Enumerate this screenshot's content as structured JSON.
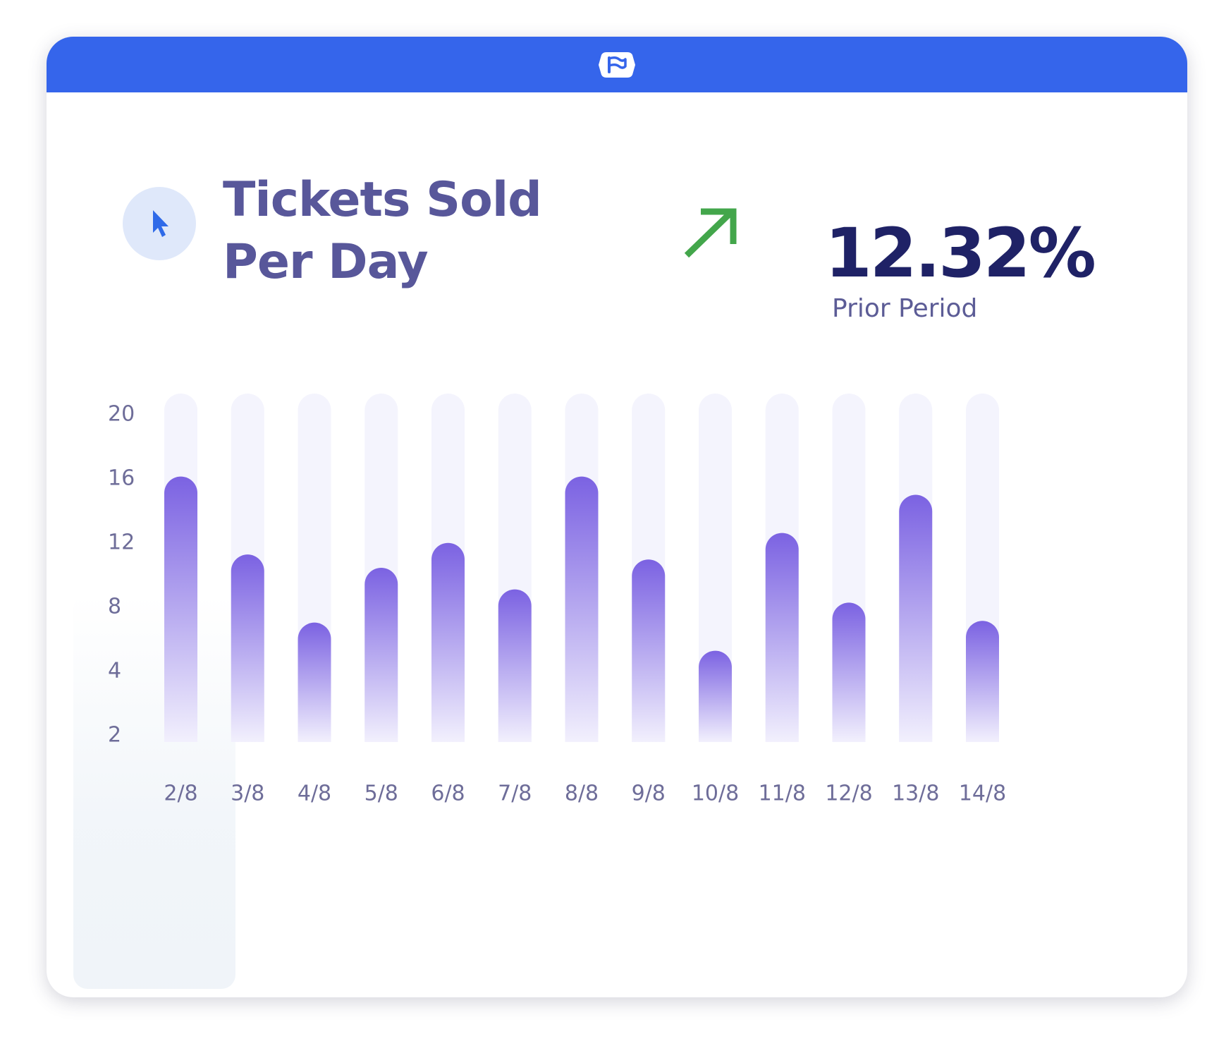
{
  "header": {
    "logo_icon": "flag-logo-icon",
    "color": "#3565eb"
  },
  "title": {
    "line1": "Tickets Sold",
    "line2": "Per Day",
    "icon": "cursor-arrow-icon",
    "color": "#58579a"
  },
  "stat": {
    "value": "12.32%",
    "label": "Prior Period",
    "trend": "up",
    "trend_icon": "trend-up-arrow-icon",
    "trend_color": "#43a64b",
    "value_color": "#1f2266"
  },
  "chart_data": {
    "type": "bar",
    "categories": [
      "2/8",
      "3/8",
      "4/8",
      "5/8",
      "6/8",
      "7/8",
      "8/8",
      "9/8",
      "10/8",
      "11/8",
      "12/8",
      "13/8",
      "14/8"
    ],
    "values": [
      16,
      11.3,
      7.2,
      10.5,
      12,
      9.2,
      16,
      11,
      5.5,
      12.6,
      8.4,
      14.9,
      7.3
    ],
    "yticks": [
      "20",
      "16",
      "12",
      "8",
      "4",
      "2"
    ],
    "ylim": [
      0,
      21
    ],
    "title": "",
    "xlabel": "",
    "ylabel": "",
    "grid": false,
    "legend": "none",
    "bar_top_color": "#7b62e2",
    "bar_bottom_color": "#f2f0fd",
    "track_color": "#f4f4fd"
  }
}
